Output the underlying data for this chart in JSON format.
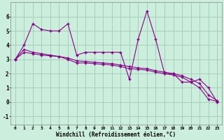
{
  "xlabel": "Windchill (Refroidissement éolien,°C)",
  "bg_color": "#cceedd",
  "grid_color": "#aaccbb",
  "line_color": "#880088",
  "ylim": [
    -1.6,
    7.0
  ],
  "xlim": [
    -0.5,
    23.5
  ],
  "yticks": [
    -1,
    0,
    1,
    2,
    3,
    4,
    5,
    6
  ],
  "xticks": [
    0,
    1,
    2,
    3,
    4,
    5,
    6,
    7,
    8,
    9,
    10,
    11,
    12,
    13,
    14,
    15,
    16,
    17,
    18,
    19,
    20,
    21,
    22,
    23
  ],
  "series1_x": [
    0,
    1,
    2,
    3,
    4,
    5,
    6,
    7,
    8,
    9,
    10,
    11,
    12,
    13,
    14,
    15,
    16,
    17,
    18,
    19,
    20,
    21,
    22,
    23
  ],
  "series1_y": [
    3.0,
    4.0,
    5.5,
    5.1,
    5.0,
    5.0,
    5.5,
    3.3,
    3.5,
    3.5,
    3.5,
    3.5,
    3.5,
    1.6,
    4.4,
    6.4,
    4.4,
    2.0,
    2.0,
    1.4,
    1.4,
    1.6,
    1.0,
    0.0
  ],
  "series2_x": [
    0,
    1,
    2,
    3,
    4,
    5,
    6,
    7,
    8,
    9,
    10,
    11,
    12,
    13,
    14,
    15,
    16,
    17,
    18,
    19,
    20,
    21,
    22,
    23
  ],
  "series2_y": [
    3.0,
    3.5,
    3.4,
    3.3,
    3.25,
    3.2,
    3.1,
    2.9,
    2.85,
    2.8,
    2.75,
    2.7,
    2.6,
    2.5,
    2.4,
    2.35,
    2.2,
    2.1,
    2.0,
    1.85,
    1.6,
    1.3,
    0.5,
    0.1
  ],
  "series3_x": [
    0,
    1,
    2,
    3,
    4,
    5,
    6,
    7,
    8,
    9,
    10,
    11,
    12,
    13,
    14,
    15,
    16,
    17,
    18,
    19,
    20,
    21,
    22,
    23
  ],
  "series3_y": [
    3.0,
    3.7,
    3.5,
    3.4,
    3.3,
    3.2,
    3.0,
    2.75,
    2.75,
    2.7,
    2.65,
    2.6,
    2.5,
    2.35,
    2.3,
    2.25,
    2.1,
    2.0,
    1.9,
    1.75,
    1.4,
    1.0,
    0.2,
    0.05
  ]
}
